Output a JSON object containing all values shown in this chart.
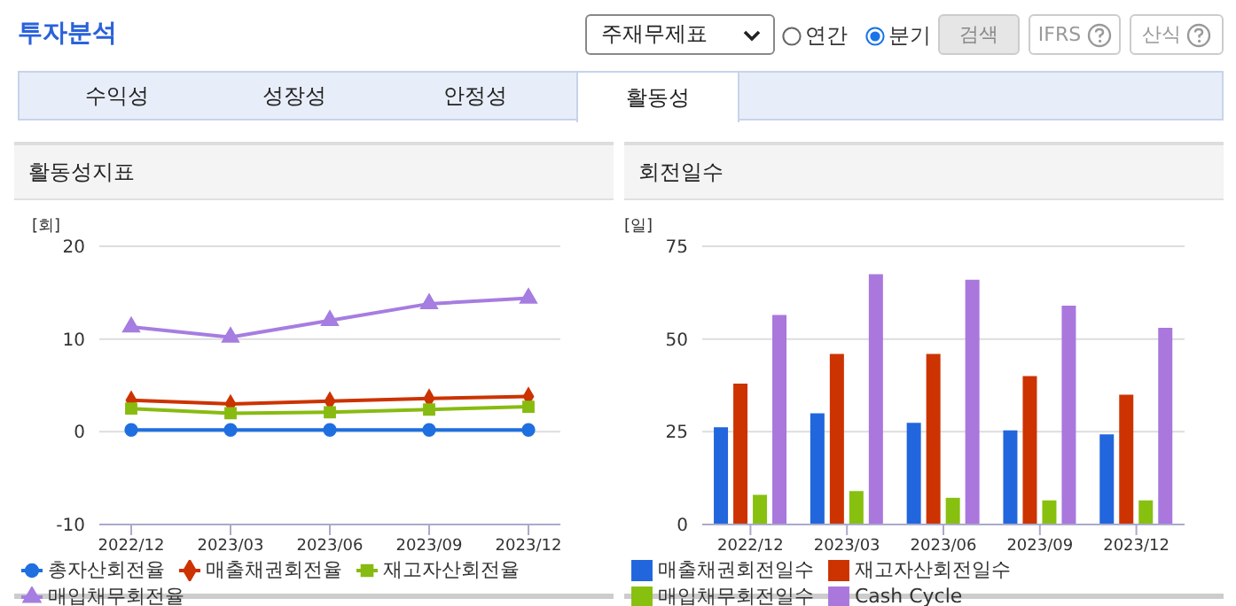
{
  "chart_data": [
    {
      "type": "line",
      "title": "활동성지표",
      "ylabel": "[회]",
      "annotations": [
        "투자분석",
        "주재무제표",
        "연간",
        "분기",
        "검색",
        "IFRS",
        "산식",
        "수익성",
        "성장성",
        "안정성",
        "활동성"
      ],
      "categories": [
        "2022/12",
        "2023/03",
        "2023/06",
        "2023/09",
        "2023/12"
      ],
      "series": [
        {
          "name": "총자산회전율",
          "color": "#1f6fe0",
          "marker": "circle",
          "values": [
            0.2,
            0.2,
            0.2,
            0.2,
            0.2
          ]
        },
        {
          "name": "매출채권회전율",
          "color": "#cc3300",
          "marker": "diamond",
          "values": [
            3.4,
            3.0,
            3.3,
            3.6,
            3.8
          ]
        },
        {
          "name": "재고자산회전율",
          "color": "#88bb11",
          "marker": "square",
          "values": [
            2.5,
            2.0,
            2.1,
            2.4,
            2.7
          ]
        },
        {
          "name": "매입채무회전율",
          "color": "#a67de0",
          "marker": "triangle",
          "values": [
            11.3,
            10.2,
            12.0,
            13.8,
            14.4
          ]
        }
      ],
      "ylim": [
        -10,
        20
      ],
      "yticks": [
        -10,
        0,
        10,
        20
      ],
      "grid": "y",
      "legend": "bottom"
    },
    {
      "type": "bar",
      "title": "회전일수",
      "ylabel": "[일]",
      "categories": [
        "2022/12",
        "2023/03",
        "2023/06",
        "2023/09",
        "2023/12"
      ],
      "series": [
        {
          "name": "매출채권회전일수",
          "color": "#2266dd",
          "values": [
            26.2,
            30.0,
            27.4,
            25.4,
            24.3
          ]
        },
        {
          "name": "재고자산회전일수",
          "color": "#cc3300",
          "values": [
            38.0,
            46.0,
            46.0,
            40.0,
            35.0
          ]
        },
        {
          "name": "매입채무회전일수",
          "color": "#88c010",
          "values": [
            8.0,
            9.0,
            7.2,
            6.5,
            6.5
          ]
        },
        {
          "name": "Cash Cycle",
          "color": "#aa77dd",
          "values": [
            56.5,
            67.5,
            66.0,
            59.0,
            53.0
          ]
        }
      ],
      "ylim": [
        0,
        75
      ],
      "yticks": [
        0,
        25,
        50,
        75
      ],
      "grid": "y",
      "legend": "bottom"
    }
  ]
}
